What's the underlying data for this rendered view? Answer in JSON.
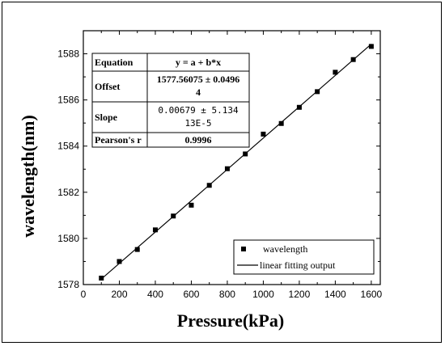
{
  "chart_data": {
    "type": "scatter",
    "xlabel": "Pressure(kPa)",
    "ylabel": "wavelength(nm)",
    "xlim": [
      0,
      1650
    ],
    "ylim": [
      1578,
      1589
    ],
    "x_ticks": [
      0,
      200,
      400,
      600,
      800,
      1000,
      1200,
      1400,
      1600
    ],
    "y_ticks": [
      1578,
      1580,
      1582,
      1584,
      1586,
      1588
    ],
    "series": [
      {
        "name": "wavelength",
        "marker": "square",
        "x": [
          100,
          200,
          300,
          400,
          500,
          600,
          700,
          800,
          900,
          1000,
          1100,
          1200,
          1300,
          1400,
          1500,
          1600
        ],
        "y": [
          1578.28,
          1579.0,
          1579.52,
          1580.37,
          1580.97,
          1581.44,
          1582.3,
          1583.02,
          1583.66,
          1584.52,
          1584.98,
          1585.68,
          1586.36,
          1587.2,
          1587.75,
          1588.32
        ]
      },
      {
        "name": "linear fitting output",
        "type": "line",
        "x": [
          100,
          1600
        ],
        "y": [
          1578.24,
          1588.42
        ]
      }
    ],
    "legend": {
      "position": "bottom-right",
      "entries": [
        "wavelength",
        "linear fitting output"
      ]
    },
    "fit_table": {
      "rows": [
        {
          "label": "Equation",
          "value": [
            "y = a + b*x"
          ]
        },
        {
          "label": "Offset",
          "value": [
            "1577.56075 ± 0.0496",
            "4"
          ]
        },
        {
          "label": "Slope",
          "value": [
            "0.00679 ± 5.134",
            "13E-5"
          ]
        },
        {
          "label": "Pearson's r",
          "value": [
            "0.9996"
          ]
        }
      ]
    },
    "colors": {
      "marker": "#000000",
      "line": "#000000"
    }
  }
}
